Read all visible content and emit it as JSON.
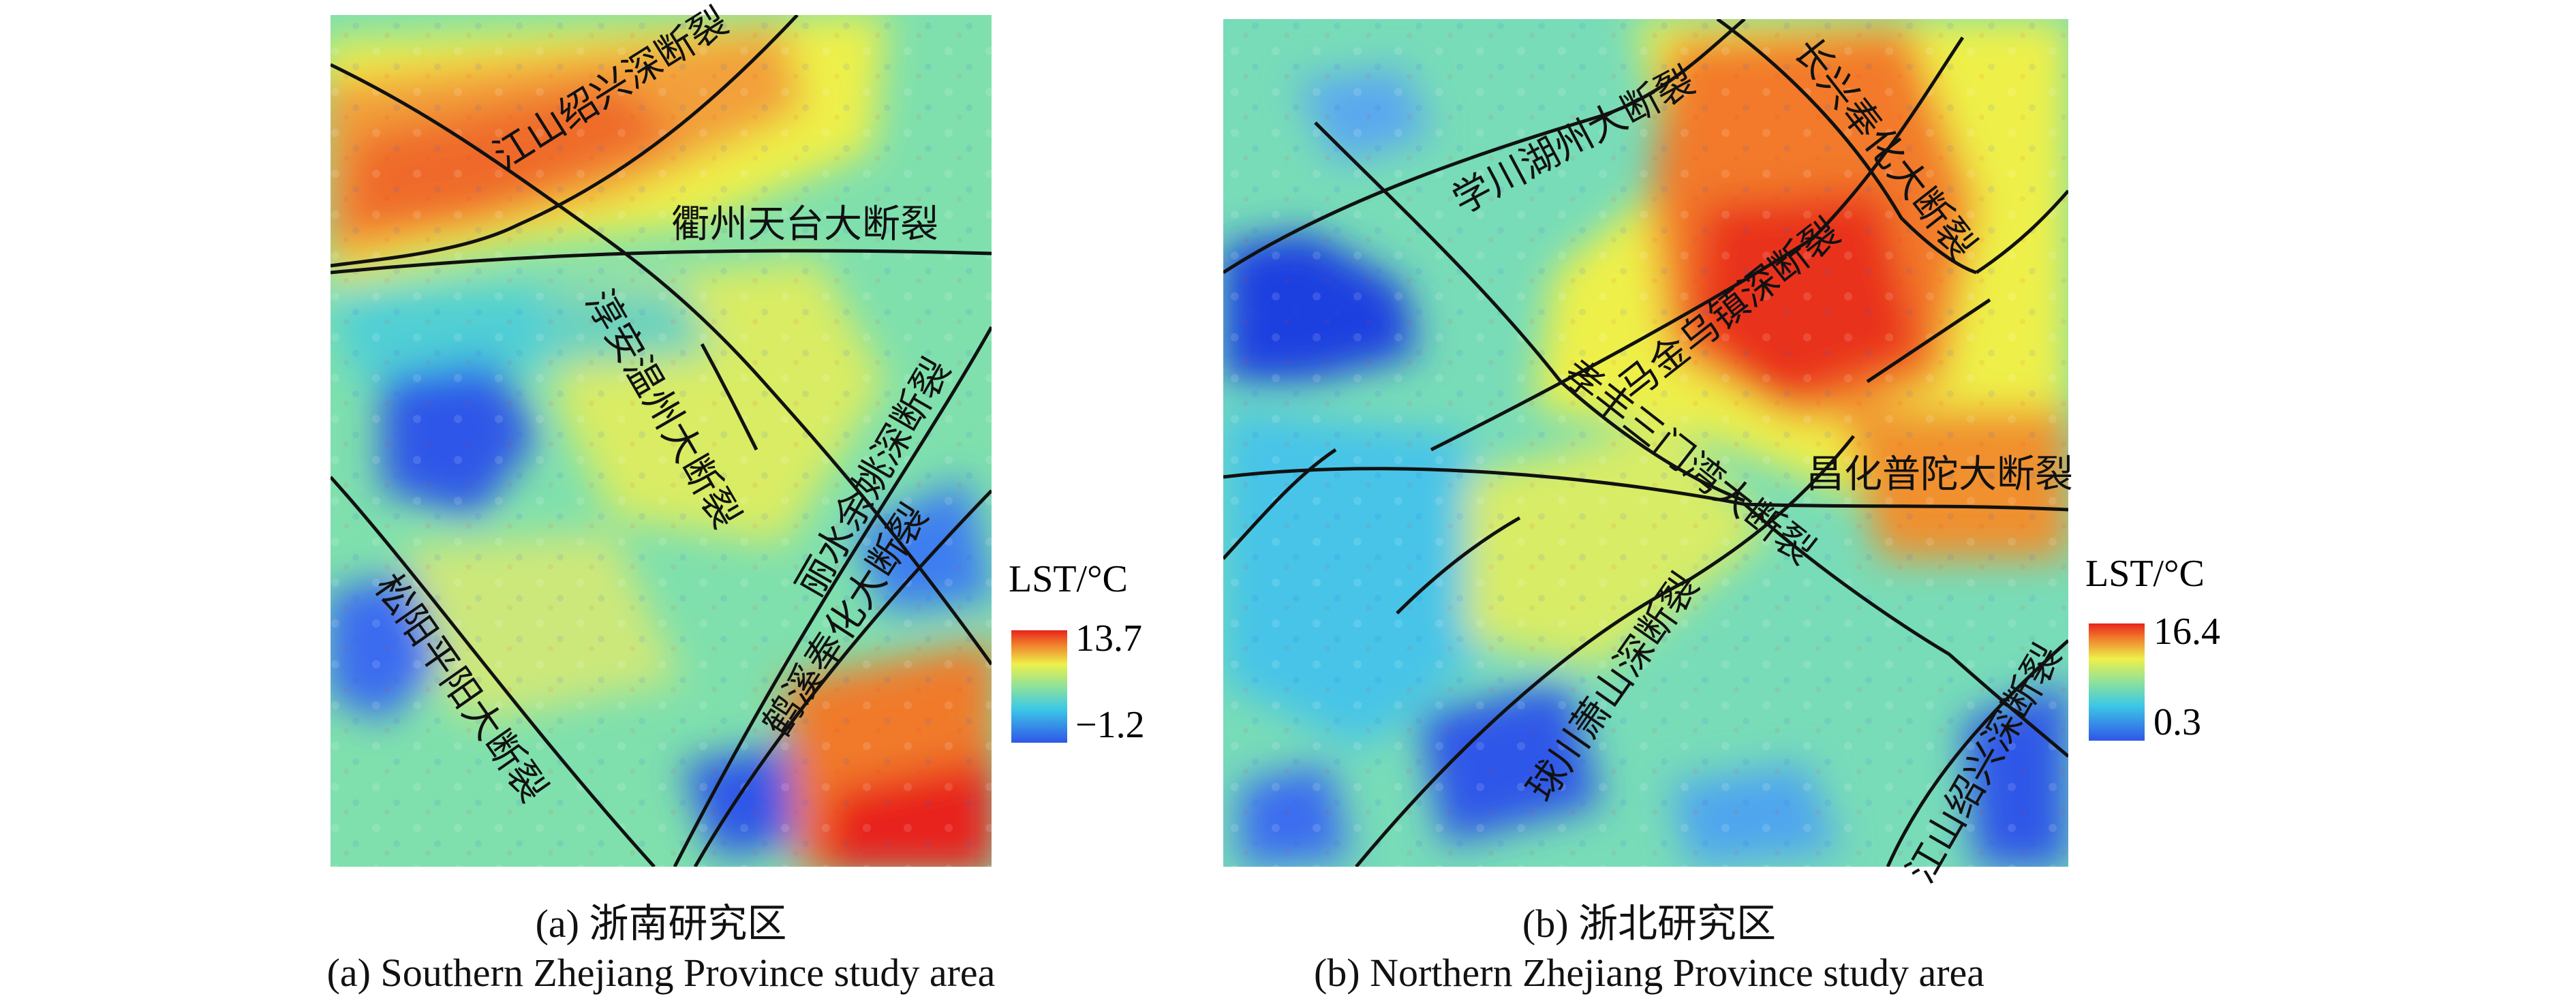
{
  "figure": {
    "panels": [
      {
        "id": "a",
        "caption_cn": "(a) 浙南研究区",
        "caption_en": "(a) Southern Zhejiang Province study area",
        "legend": {
          "title": "LST/°C",
          "max": "13.7",
          "min": "−1.2"
        },
        "faults": [
          "江山绍兴深断裂",
          "衢州天台大断裂",
          "淳安温州大断裂",
          "丽水余姚深断裂",
          "鹤溪奉化大断裂",
          "松阳平阳大断裂"
        ]
      },
      {
        "id": "b",
        "caption_cn": "(b) 浙北研究区",
        "caption_en": "(b) Northern Zhejiang Province study area",
        "legend": {
          "title": "LST/°C",
          "max": "16.4",
          "min": "0.3"
        },
        "faults": [
          "学川湖州大断裂",
          "长兴奉化大断裂",
          "马金乌镇深断裂",
          "孝丰三门湾大断裂",
          "昌化普陀大断裂",
          "球川萧山深断裂",
          "江山绍兴深断裂"
        ]
      }
    ],
    "colors": {
      "cold": "#2f56e8",
      "cool": "#3cc8e6",
      "mid": "#8ee29a",
      "warm": "#eef04a",
      "hot": "#f07a2a",
      "hottest": "#e8231c",
      "fault_line": "#111111"
    }
  }
}
